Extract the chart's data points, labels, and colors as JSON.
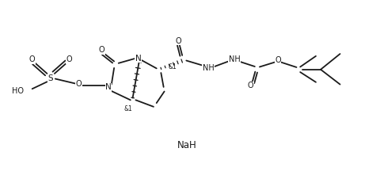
{
  "bg_color": "#ffffff",
  "line_color": "#1a1a1a",
  "lw": 1.3,
  "fig_w": 4.81,
  "fig_h": 2.16,
  "dpi": 100,
  "xlim": [
    0,
    10.2
  ],
  "ylim": [
    0,
    4.3
  ],
  "NaH_x": 5.0,
  "NaH_y": 0.55,
  "NaH_size": 8.5
}
